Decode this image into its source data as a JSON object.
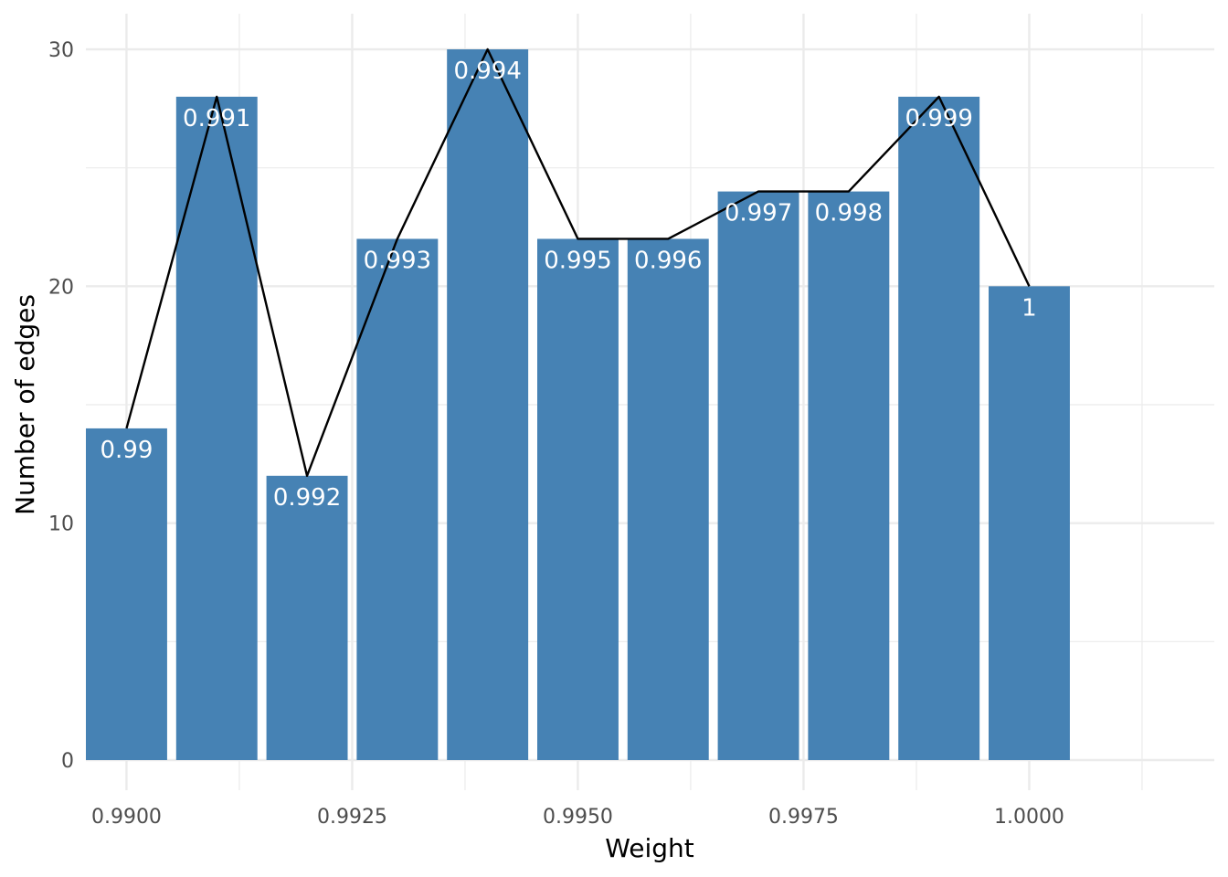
{
  "chart_data": {
    "type": "bar",
    "x": [
      0.99,
      0.991,
      0.992,
      0.993,
      0.994,
      0.995,
      0.996,
      0.997,
      0.998,
      0.999,
      1.0
    ],
    "values": [
      14,
      28,
      12,
      22,
      30,
      22,
      22,
      24,
      24,
      28,
      20
    ],
    "bar_labels": [
      "0.99",
      "0.991",
      "0.992",
      "0.993",
      "0.994",
      "0.995",
      "0.996",
      "0.997",
      "0.998",
      "0.999",
      "1"
    ],
    "overlay_line": true,
    "xlabel": "Weight",
    "ylabel": "Number of edges",
    "xlim": [
      0.98955,
      1.00205
    ],
    "ylim": [
      0,
      30
    ],
    "x_ticks": [
      0.99,
      0.9925,
      0.995,
      0.9975,
      1.0
    ],
    "x_tick_labels": [
      "0.9900",
      "0.9925",
      "0.9950",
      "0.9975",
      "1.0000"
    ],
    "y_ticks": [
      0,
      10,
      20,
      30
    ],
    "y_tick_labels": [
      "0",
      "10",
      "20",
      "30"
    ],
    "grid": true,
    "bar_color": "#4682b4",
    "line_color": "#000000",
    "grid_color": "#ebebeb"
  }
}
